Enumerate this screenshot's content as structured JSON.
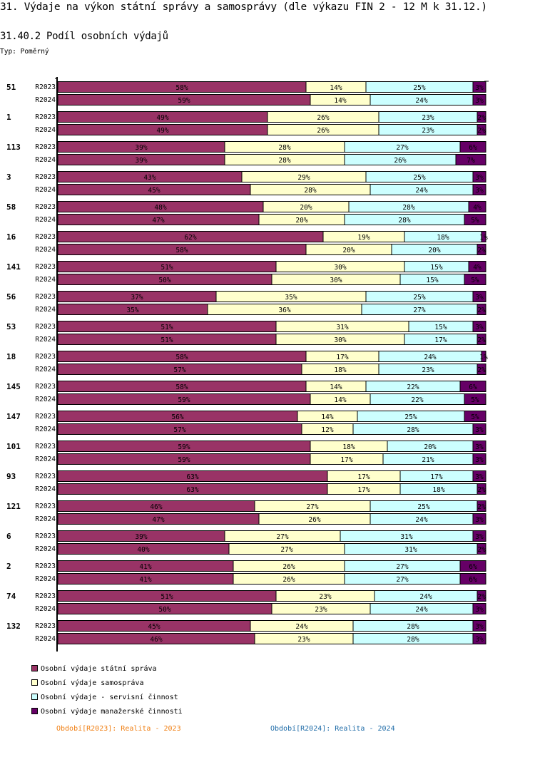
{
  "header": {
    "title": "31. Výdaje na výkon státní správy a samosprávy (dle výkazu FIN 2 - 12 M k 31.12.)",
    "subtitle": "31.40.2 Podíl osobních výdajů",
    "type_label": "Typ: Poměrný"
  },
  "chart_data": {
    "type": "bar",
    "orientation": "horizontal",
    "stacked": "percent",
    "title": "31.40.2 Podíl osobních výdajů",
    "xlabel": "",
    "ylabel": "",
    "xlim": [
      0,
      100
    ],
    "grid": false,
    "legend_position": "bottom-left",
    "series": [
      {
        "name": "Osobní výdaje státní správa",
        "color": "#993366"
      },
      {
        "name": "Osobní výdaje samospráva",
        "color": "#ffffcc"
      },
      {
        "name": "Osobní výdaje - servisní činnost",
        "color": "#ccffff"
      },
      {
        "name": "Osobní výdaje manažerské činnosti",
        "color": "#660066"
      }
    ],
    "groups": [
      {
        "label": "51",
        "rows": [
          {
            "period": "R2023",
            "values": [
              58,
              14,
              25,
              3
            ]
          },
          {
            "period": "R2024",
            "values": [
              59,
              14,
              24,
              3
            ]
          }
        ]
      },
      {
        "label": "1",
        "rows": [
          {
            "period": "R2023",
            "values": [
              49,
              26,
              23,
              2
            ]
          },
          {
            "period": "R2024",
            "values": [
              49,
              26,
              23,
              2
            ]
          }
        ]
      },
      {
        "label": "113",
        "rows": [
          {
            "period": "R2023",
            "values": [
              39,
              28,
              27,
              6
            ]
          },
          {
            "period": "R2024",
            "values": [
              39,
              28,
              26,
              7
            ]
          }
        ]
      },
      {
        "label": "3",
        "rows": [
          {
            "period": "R2023",
            "values": [
              43,
              29,
              25,
              3
            ]
          },
          {
            "period": "R2024",
            "values": [
              45,
              28,
              24,
              3
            ]
          }
        ]
      },
      {
        "label": "58",
        "rows": [
          {
            "period": "R2023",
            "values": [
              48,
              20,
              28,
              4
            ]
          },
          {
            "period": "R2024",
            "values": [
              47,
              20,
              28,
              5
            ]
          }
        ]
      },
      {
        "label": "16",
        "rows": [
          {
            "period": "R2023",
            "values": [
              62,
              19,
              18,
              1
            ]
          },
          {
            "period": "R2024",
            "values": [
              58,
              20,
              20,
              2
            ]
          }
        ]
      },
      {
        "label": "141",
        "rows": [
          {
            "period": "R2023",
            "values": [
              51,
              30,
              15,
              4
            ]
          },
          {
            "period": "R2024",
            "values": [
              50,
              30,
              15,
              5
            ]
          }
        ]
      },
      {
        "label": "56",
        "rows": [
          {
            "period": "R2023",
            "values": [
              37,
              35,
              25,
              3
            ]
          },
          {
            "period": "R2024",
            "values": [
              35,
              36,
              27,
              2
            ]
          }
        ]
      },
      {
        "label": "53",
        "rows": [
          {
            "period": "R2023",
            "values": [
              51,
              31,
              15,
              3
            ]
          },
          {
            "period": "R2024",
            "values": [
              51,
              30,
              17,
              2
            ]
          }
        ]
      },
      {
        "label": "18",
        "rows": [
          {
            "period": "R2023",
            "values": [
              58,
              17,
              24,
              1
            ]
          },
          {
            "period": "R2024",
            "values": [
              57,
              18,
              23,
              2
            ]
          }
        ]
      },
      {
        "label": "145",
        "rows": [
          {
            "period": "R2023",
            "values": [
              58,
              14,
              22,
              6
            ]
          },
          {
            "period": "R2024",
            "values": [
              59,
              14,
              22,
              5
            ]
          }
        ]
      },
      {
        "label": "147",
        "rows": [
          {
            "period": "R2023",
            "values": [
              56,
              14,
              25,
              5
            ]
          },
          {
            "period": "R2024",
            "values": [
              57,
              12,
              28,
              3
            ]
          }
        ]
      },
      {
        "label": "101",
        "rows": [
          {
            "period": "R2023",
            "values": [
              59,
              18,
              20,
              3
            ]
          },
          {
            "period": "R2024",
            "values": [
              59,
              17,
              21,
              3
            ]
          }
        ]
      },
      {
        "label": "93",
        "rows": [
          {
            "period": "R2023",
            "values": [
              63,
              17,
              17,
              3
            ]
          },
          {
            "period": "R2024",
            "values": [
              63,
              17,
              18,
              2
            ]
          }
        ]
      },
      {
        "label": "121",
        "rows": [
          {
            "period": "R2023",
            "values": [
              46,
              27,
              25,
              2
            ]
          },
          {
            "period": "R2024",
            "values": [
              47,
              26,
              24,
              3
            ]
          }
        ]
      },
      {
        "label": "6",
        "rows": [
          {
            "period": "R2023",
            "values": [
              39,
              27,
              31,
              3
            ]
          },
          {
            "period": "R2024",
            "values": [
              40,
              27,
              31,
              2
            ]
          }
        ]
      },
      {
        "label": "2",
        "rows": [
          {
            "period": "R2023",
            "values": [
              41,
              26,
              27,
              6
            ]
          },
          {
            "period": "R2024",
            "values": [
              41,
              26,
              27,
              6
            ]
          }
        ]
      },
      {
        "label": "74",
        "rows": [
          {
            "period": "R2023",
            "values": [
              51,
              23,
              24,
              2
            ]
          },
          {
            "period": "R2024",
            "values": [
              50,
              23,
              24,
              3
            ]
          }
        ]
      },
      {
        "label": "132",
        "rows": [
          {
            "period": "R2023",
            "values": [
              45,
              24,
              28,
              3
            ]
          },
          {
            "period": "R2024",
            "values": [
              46,
              23,
              28,
              3
            ]
          }
        ]
      }
    ]
  },
  "legend": {
    "items": [
      {
        "label": "Osobní výdaje státní správa",
        "color": "#993366"
      },
      {
        "label": "Osobní výdaje samospráva",
        "color": "#ffffcc"
      },
      {
        "label": "Osobní výdaje - servisní činnost",
        "color": "#ccffff"
      },
      {
        "label": "Osobní výdaje manažerské činnosti",
        "color": "#660066"
      }
    ]
  },
  "periods": [
    {
      "label": "Období[R2023]: Realita - 2023",
      "color": "#f07f13"
    },
    {
      "label": "Období[R2024]: Realita - 2024",
      "color": "#1f6ca8"
    }
  ]
}
